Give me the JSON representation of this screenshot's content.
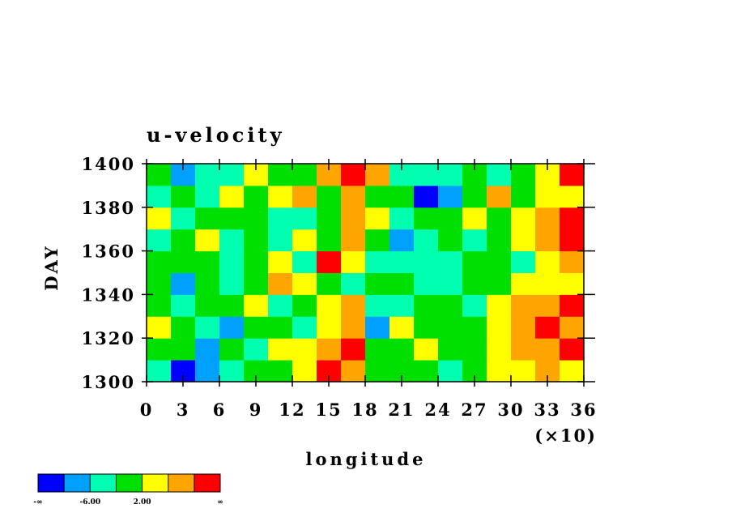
{
  "chart_data": {
    "type": "heatmap",
    "title": "u-velocity",
    "x_label": "longitude",
    "x_multiplier": "(×10)",
    "y_label": "DAY",
    "xlim": [
      0,
      36
    ],
    "xticks": [
      0,
      3,
      6,
      9,
      12,
      15,
      18,
      21,
      24,
      27,
      30,
      33,
      36
    ],
    "ylim": [
      1300,
      1400
    ],
    "yticks": [
      1300,
      1320,
      1340,
      1360,
      1380,
      1400
    ],
    "x": [
      1,
      3,
      5,
      7,
      9,
      11,
      13,
      15,
      17,
      19,
      21,
      23,
      25,
      27,
      29,
      31,
      33,
      35
    ],
    "y": [
      1305,
      1315,
      1325,
      1335,
      1345,
      1355,
      1365,
      1375,
      1385,
      1395
    ],
    "z": [
      [
        -3,
        -11,
        -7,
        -4,
        0,
        1,
        3,
        12,
        7,
        1,
        -2,
        0,
        -3,
        1,
        2,
        5,
        8,
        3
      ],
      [
        0,
        -2,
        -7,
        -1,
        -3,
        4,
        2,
        8,
        11,
        0,
        -1,
        3,
        0,
        -2,
        4,
        6,
        9,
        11
      ],
      [
        4,
        -1,
        -3,
        -8,
        1,
        0,
        -3,
        5,
        9,
        -7,
        2,
        -1,
        1,
        0,
        5,
        7,
        11,
        8
      ],
      [
        -1,
        -5,
        1,
        -2,
        5,
        -4,
        0,
        3,
        7,
        -3,
        -6,
        -2,
        1,
        -3,
        3,
        9,
        7,
        11
      ],
      [
        -2,
        -8,
        0,
        -4,
        -2,
        7,
        3,
        1,
        -5,
        -2,
        -1,
        -4,
        -5,
        0,
        -2,
        4,
        3,
        5
      ],
      [
        1,
        0,
        -2,
        -5,
        -1,
        2,
        -3,
        10,
        5,
        -4,
        -3,
        -6,
        -3,
        -2,
        1,
        -3,
        4,
        8
      ],
      [
        -5,
        -1,
        3,
        -6,
        -2,
        -4,
        3,
        -1,
        8,
        -2,
        -8,
        -4,
        -1,
        -5,
        -1,
        3,
        8,
        11
      ],
      [
        2,
        -4,
        -2,
        0,
        -1,
        -3,
        -4,
        1,
        6,
        2,
        -5,
        -2,
        0,
        3,
        -1,
        2,
        6,
        12
      ],
      [
        -6,
        -1,
        -3,
        4,
        0,
        3,
        7,
        1,
        9,
        -1,
        0,
        -11,
        -7,
        1,
        6,
        -2,
        3,
        5
      ],
      [
        -1,
        -7,
        -3,
        -5,
        2,
        1,
        -2,
        6,
        12,
        7,
        -4,
        -6,
        -3,
        -2,
        -4,
        1,
        4,
        11
      ]
    ],
    "colorbar": {
      "levels": [
        -10,
        -6,
        -2,
        2,
        6,
        10
      ],
      "colors": [
        "#0000ff",
        "#00a0ff",
        "#00ffb0",
        "#00e000",
        "#ffff00",
        "#ffa500",
        "#ff0000"
      ],
      "ticks": [
        {
          "value": -6,
          "label": "-6.00"
        },
        {
          "value": 2,
          "label": "2.00"
        }
      ],
      "low_label": "-∞",
      "high_label": "∞"
    }
  }
}
